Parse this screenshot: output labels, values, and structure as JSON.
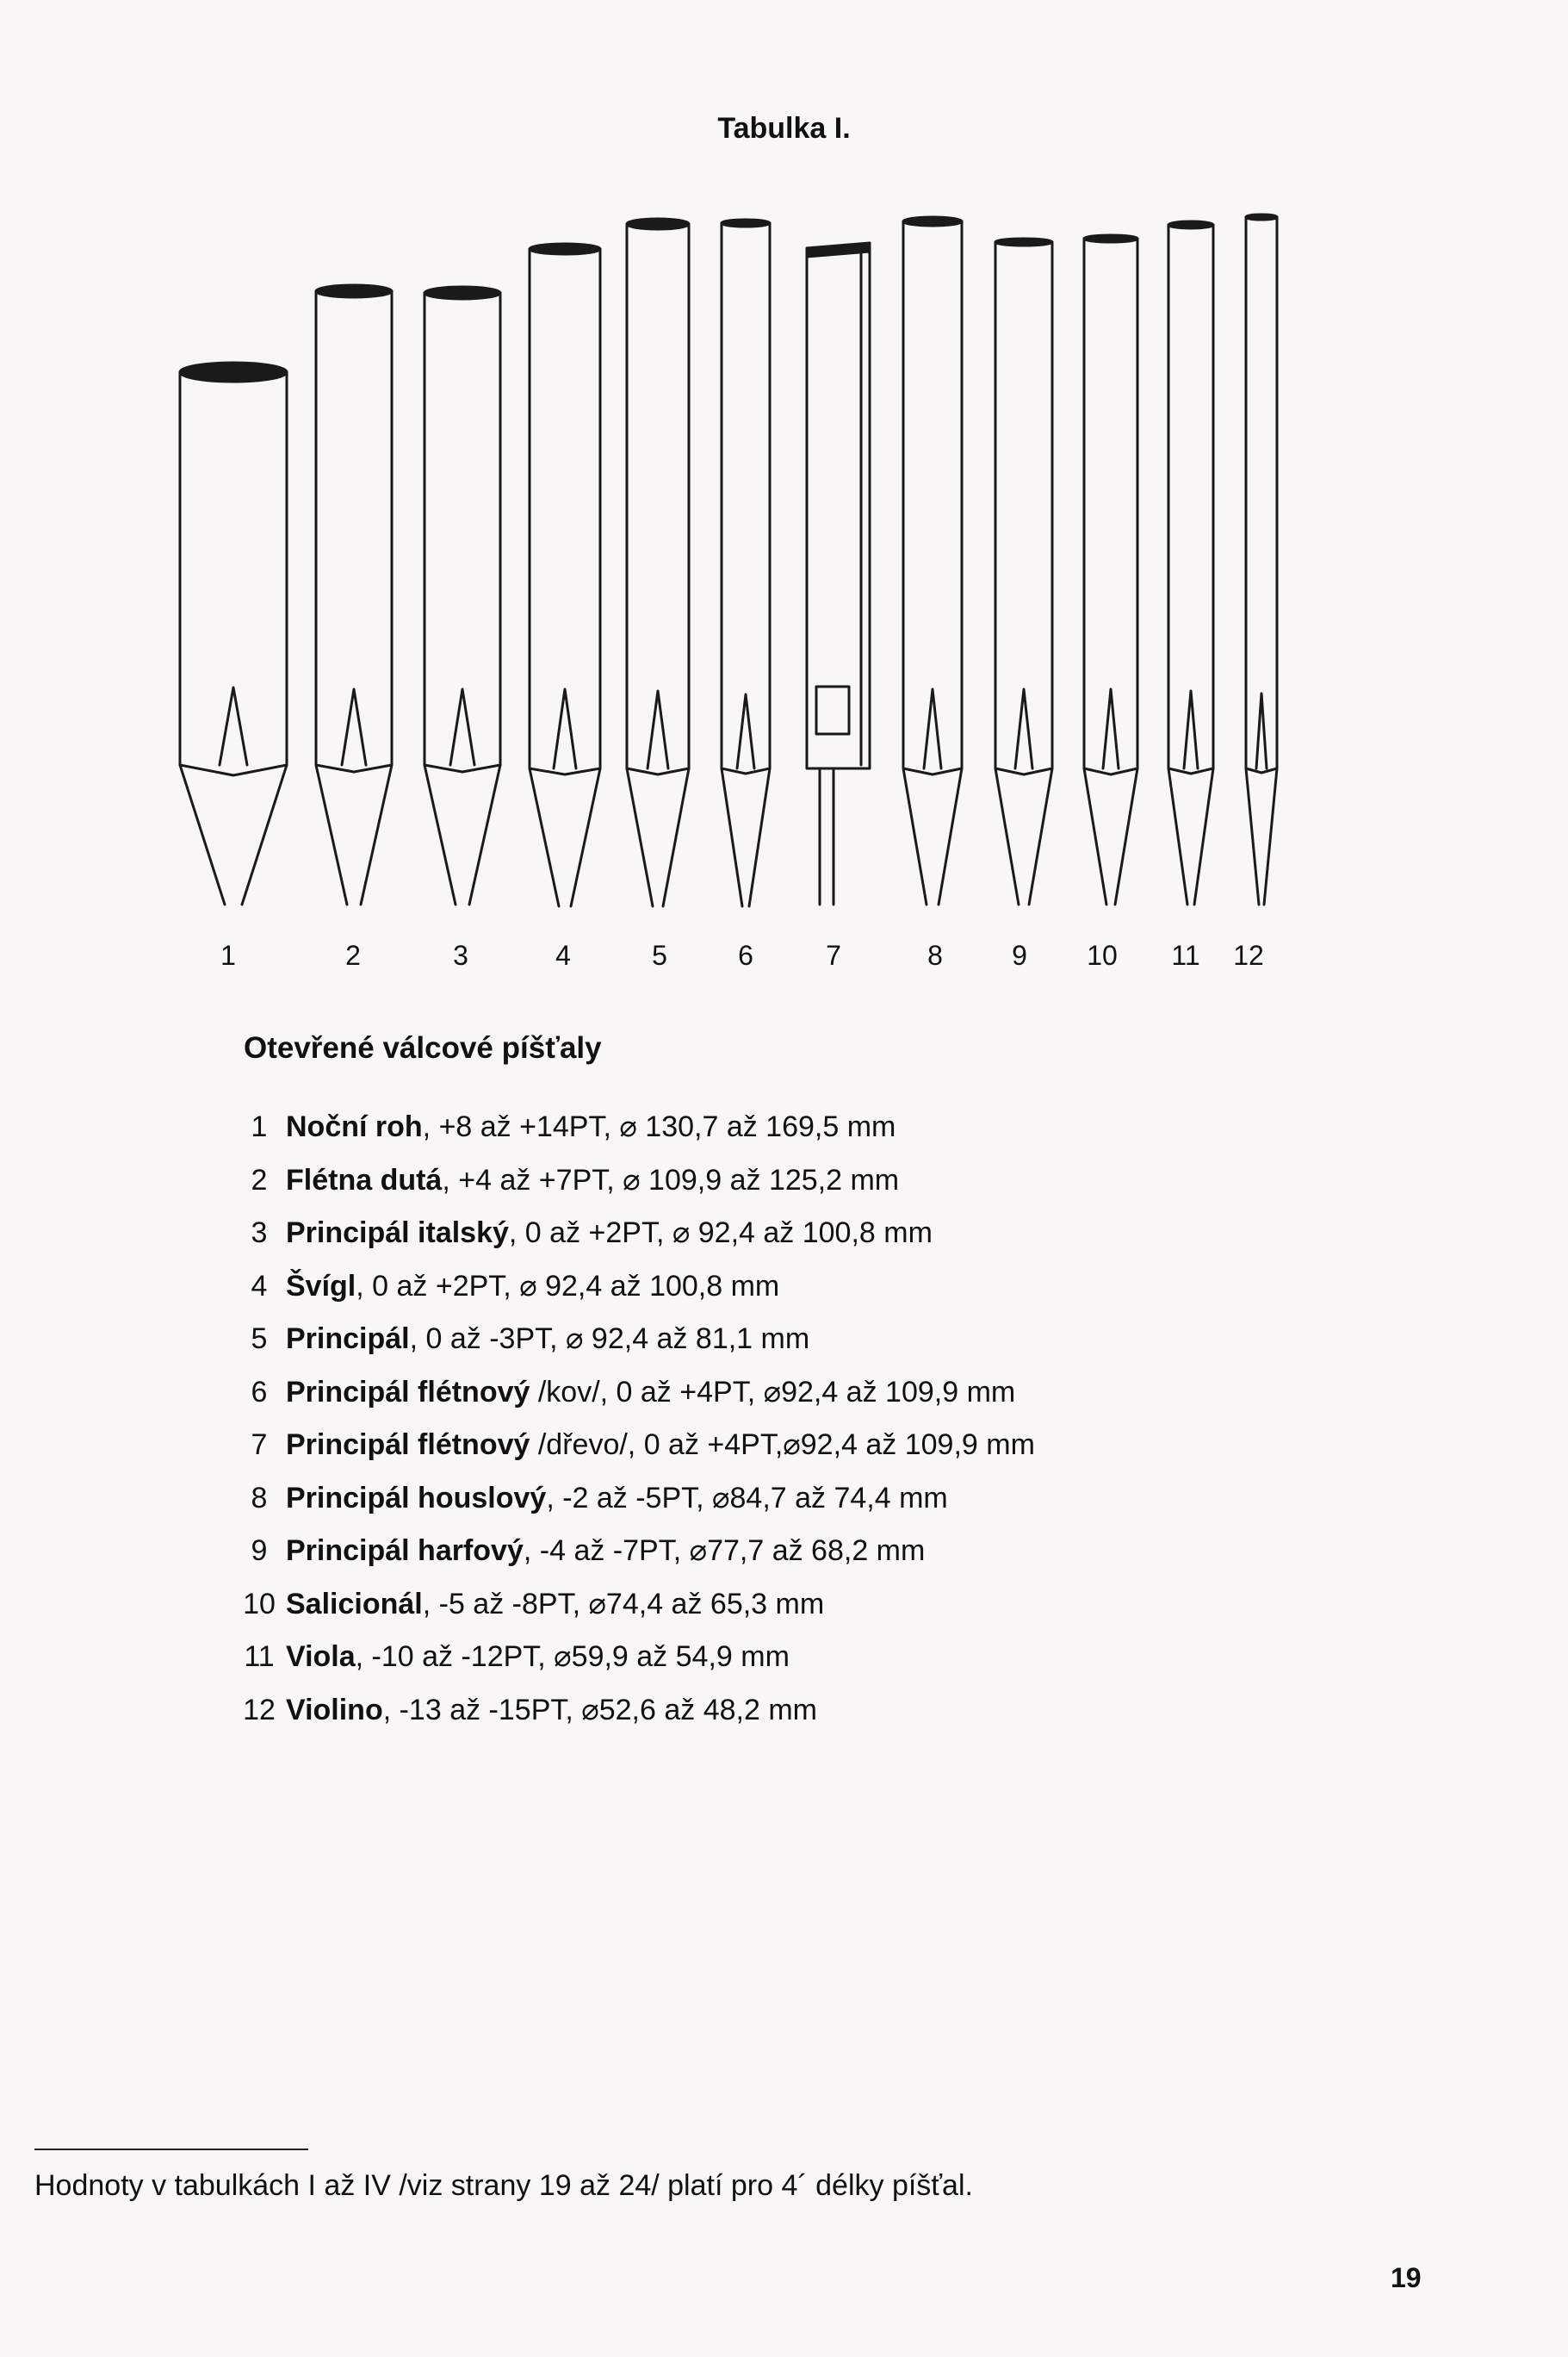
{
  "table_title": "Tabulka I.",
  "figure": {
    "pipe_numbers": [
      "1",
      "2",
      "3",
      "4",
      "5",
      "6",
      "7",
      "8",
      "9",
      "10",
      "11",
      "12"
    ]
  },
  "section_heading": "Otevřené válcové píšťaly",
  "stops": [
    {
      "no": "1",
      "name": "Noční roh",
      "spec": ", +8 až +14PT, ⌀ 130,7 až 169,5 mm"
    },
    {
      "no": "2",
      "name": "Flétna dutá",
      "spec": ", +4 až +7PT, ⌀ 109,9 až 125,2 mm"
    },
    {
      "no": "3",
      "name": "Principál italský",
      "spec": ", 0 až +2PT, ⌀ 92,4 až 100,8 mm"
    },
    {
      "no": "4",
      "name": "Švígl",
      "spec": ", 0 až +2PT, ⌀ 92,4 až 100,8 mm"
    },
    {
      "no": "5",
      "name": "Principál",
      "spec": ", 0 až -3PT, ⌀ 92,4 až 81,1 mm"
    },
    {
      "no": "6",
      "name": "Principál flétnový",
      "spec": " /kov/, 0 až +4PT, ⌀92,4 až 109,9 mm"
    },
    {
      "no": "7",
      "name": "Principál flétnový",
      "spec": " /dřevo/, 0 až +4PT,⌀92,4 až 109,9 mm"
    },
    {
      "no": "8",
      "name": "Principál houslový",
      "spec": ", -2 až -5PT, ⌀84,7 až 74,4 mm"
    },
    {
      "no": "9",
      "name": "Principál harfový",
      "spec": ", -4 až -7PT, ⌀77,7 až 68,2 mm"
    },
    {
      "no": "10",
      "name": "Salicionál",
      "spec": ", -5 až -8PT, ⌀74,4 až 65,3 mm"
    },
    {
      "no": "11",
      "name": "Viola",
      "spec": ", -10 až -12PT, ⌀59,9 až 54,9 mm"
    },
    {
      "no": "12",
      "name": "Violino",
      "spec": ", -13 až -15PT, ⌀52,6 až 48,2 mm"
    }
  ],
  "footnote": "Hodnoty v tabulkách I až IV /viz strany 19 až 24/ platí pro 4´ délky píšťal.",
  "page_number": "19"
}
